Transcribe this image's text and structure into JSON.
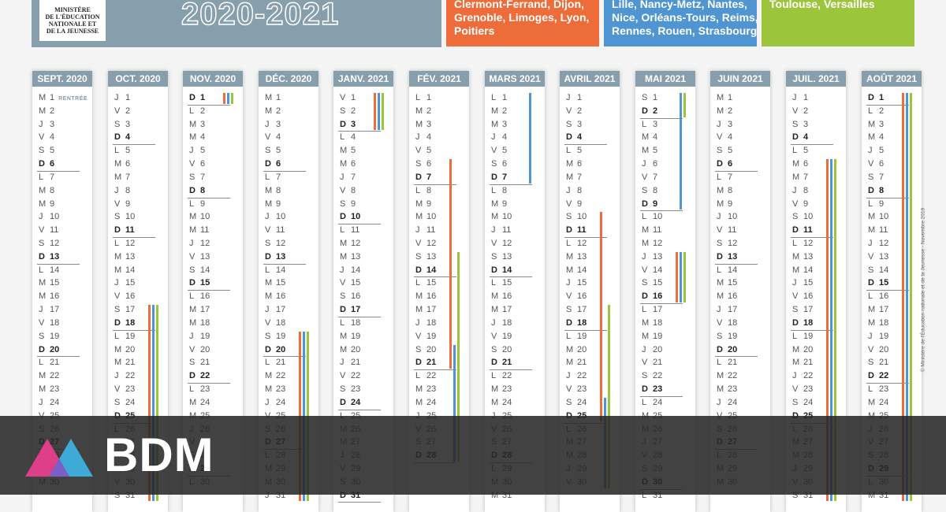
{
  "header": {
    "ministry": [
      "MINISTÈRE",
      "DE L'ÉDUCATION",
      "NATIONALE ET",
      "DE LA JEUNESSE"
    ],
    "year": "2020-2021"
  },
  "zones": {
    "A": {
      "lines": [
        "Clermont-Ferrand, Dijon,",
        "Grenoble, Limoges, Lyon,",
        "Poitiers"
      ],
      "color": "#ee6c3a"
    },
    "B": {
      "lines": [
        "Lille, Nancy-Metz, Nantes,",
        "Nice, Orléans-Tours, Reims,",
        "Rennes, Rouen, Strasbourg"
      ],
      "color": "#4f95d2"
    },
    "C": {
      "lines": [
        "Toulouse, Versailles"
      ],
      "color": "#9dc53c"
    }
  },
  "rentree_label": "RENTRÉE",
  "months": [
    {
      "name": "SEPT. 2020",
      "days": 30,
      "first_dow": 2,
      "rentree_day": 1,
      "bars": []
    },
    {
      "name": "OCT. 2020",
      "days": 31,
      "first_dow": 4,
      "bars": [
        [
          17,
          31,
          "A"
        ],
        [
          17,
          31,
          "B"
        ],
        [
          17,
          31,
          "C"
        ]
      ]
    },
    {
      "name": "NOV. 2020",
      "days": 30,
      "first_dow": 0,
      "bars": [
        [
          1,
          1,
          "A"
        ],
        [
          1,
          1,
          "B"
        ],
        [
          1,
          1,
          "C"
        ]
      ]
    },
    {
      "name": "DÉC. 2020",
      "days": 31,
      "first_dow": 2,
      "bars": [
        [
          19,
          31,
          "A"
        ],
        [
          19,
          31,
          "B"
        ],
        [
          19,
          31,
          "C"
        ]
      ]
    },
    {
      "name": "JANV. 2021",
      "days": 31,
      "first_dow": 5,
      "bars": [
        [
          1,
          3,
          "A"
        ],
        [
          1,
          3,
          "B"
        ],
        [
          1,
          3,
          "C"
        ]
      ]
    },
    {
      "name": "FÉV. 2021",
      "days": 28,
      "first_dow": 1,
      "bars": [
        [
          6,
          21,
          "A"
        ],
        [
          20,
          28,
          "B"
        ],
        [
          13,
          28,
          "C"
        ]
      ]
    },
    {
      "name": "MARS 2021",
      "days": 31,
      "first_dow": 1,
      "bars": [
        [
          1,
          7,
          "B"
        ]
      ]
    },
    {
      "name": "AVRIL 2021",
      "days": 30,
      "first_dow": 4,
      "bars": [
        [
          10,
          25,
          "A"
        ],
        [
          24,
          30,
          "B"
        ],
        [
          17,
          30,
          "C"
        ]
      ]
    },
    {
      "name": "MAI 2021",
      "days": 31,
      "first_dow": 6,
      "bars": [
        [
          1,
          9,
          "B"
        ],
        [
          1,
          2,
          "C"
        ],
        [
          13,
          16,
          "A"
        ],
        [
          13,
          16,
          "B"
        ],
        [
          13,
          16,
          "C"
        ]
      ]
    },
    {
      "name": "JUIN 2021",
      "days": 30,
      "first_dow": 2,
      "bars": []
    },
    {
      "name": "JUIL. 2021",
      "days": 31,
      "first_dow": 4,
      "bars": [
        [
          6,
          31,
          "A"
        ],
        [
          6,
          31,
          "B"
        ],
        [
          6,
          31,
          "C"
        ]
      ]
    },
    {
      "name": "AOÛT 2021",
      "days": 31,
      "first_dow": 0,
      "bars": [
        [
          1,
          31,
          "A"
        ],
        [
          1,
          31,
          "B"
        ],
        [
          1,
          31,
          "C"
        ]
      ]
    }
  ],
  "day_letters": [
    "D",
    "L",
    "M",
    "M",
    "J",
    "V",
    "S"
  ],
  "credit": "© Ministère de l'Éducation nationale et de la Jeunesse - Novembre 2019",
  "brand": {
    "name": "BDM",
    "colors": [
      "#e83e8c",
      "#3db0e0"
    ]
  }
}
